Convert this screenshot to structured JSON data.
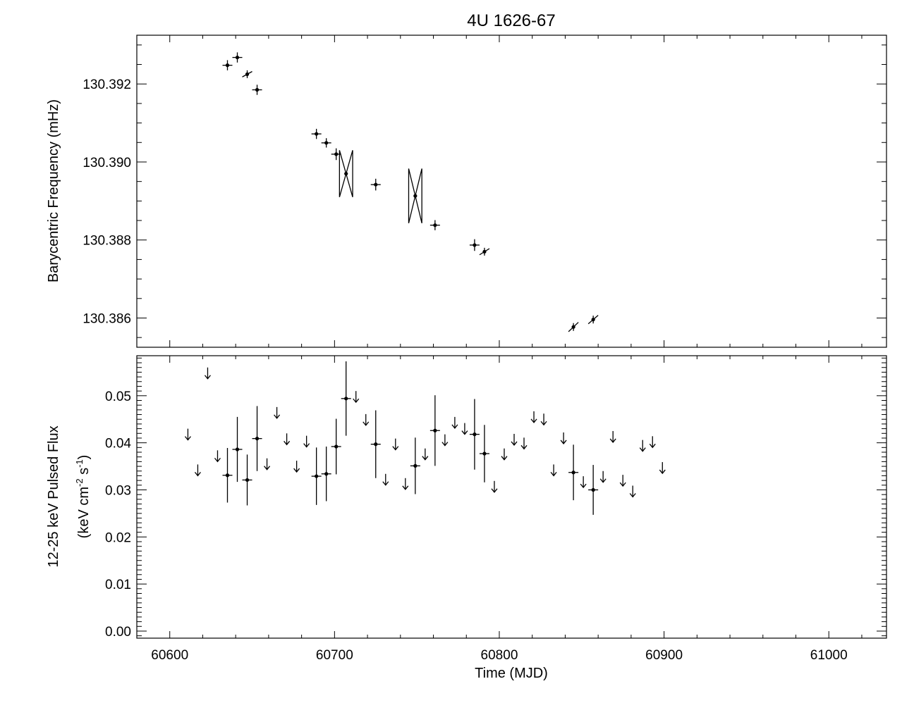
{
  "chart_data": [
    {
      "type": "scatter",
      "title": "4U 1626-67",
      "ylabel": "Barycentric Frequency (mHz)",
      "xlim": [
        60580,
        61035
      ],
      "ylim": [
        130.38525,
        130.39325
      ],
      "yticks": [
        130.386,
        130.388,
        130.39,
        130.392
      ],
      "ytick_labels": [
        "130.386",
        "130.388",
        "130.390",
        "130.392"
      ],
      "series": [
        {
          "points": [
            {
              "x": 60635,
              "y": 130.39248,
              "xerr": 3,
              "yerr": 0.00013,
              "slope": 0
            },
            {
              "x": 60641,
              "y": 130.39268,
              "xerr": 3,
              "yerr": 0.00013,
              "slope": 0
            },
            {
              "x": 60647,
              "y": 130.39225,
              "xerr": 3,
              "yerr": 0.0001,
              "slope": -7e-05
            },
            {
              "x": 60653,
              "y": 130.39185,
              "xerr": 3,
              "yerr": 0.00013,
              "slope": 0
            },
            {
              "x": 60689,
              "y": 130.39072,
              "xerr": 3,
              "yerr": 0.00013,
              "slope": 0
            },
            {
              "x": 60695,
              "y": 130.39049,
              "xerr": 3,
              "yerr": 0.00012,
              "slope": 0
            },
            {
              "x": 60701,
              "y": 130.3902,
              "xerr": 3,
              "yerr": 0.00015,
              "slope": 0
            },
            {
              "x": 60707,
              "y": 130.3897,
              "xerr": 4,
              "yerr": 0.0006,
              "slope": 0
            },
            {
              "x": 60725,
              "y": 130.38942,
              "xerr": 3,
              "yerr": 0.00015,
              "slope": 0
            },
            {
              "x": 60749,
              "y": 130.38913,
              "xerr": 4,
              "yerr": 0.0007,
              "slope": 0
            },
            {
              "x": 60761,
              "y": 130.38838,
              "xerr": 3,
              "yerr": 0.00013,
              "slope": 0
            },
            {
              "x": 60785,
              "y": 130.38787,
              "xerr": 3,
              "yerr": 0.00015,
              "slope": 0
            },
            {
              "x": 60791,
              "y": 130.3877,
              "xerr": 3,
              "yerr": 0.0001,
              "slope": -8e-05
            },
            {
              "x": 60845,
              "y": 130.38577,
              "xerr": 3,
              "yerr": 0.0001,
              "slope": -0.00012
            },
            {
              "x": 60857,
              "y": 130.38596,
              "xerr": 3,
              "yerr": 0.0001,
              "slope": -0.00011
            }
          ]
        }
      ],
      "grid": false
    },
    {
      "type": "scatter",
      "xlabel": "Time (MJD)",
      "ylabel_line1": "12-25 keV Pulsed Flux",
      "ylabel_line2_pre": "(keV cm",
      "ylabel_sup1": "-2",
      "ylabel_line2_mid": " s",
      "ylabel_sup2": "-1",
      "ylabel_line2_post": ")",
      "xlim": [
        60580,
        61035
      ],
      "ylim": [
        -0.0015,
        0.0585
      ],
      "xticks": [
        60600,
        60700,
        60800,
        60900,
        61000
      ],
      "xtick_labels": [
        "60600",
        "60700",
        "60800",
        "60900",
        "61000"
      ],
      "yticks": [
        0.0,
        0.01,
        0.02,
        0.03,
        0.04,
        0.05
      ],
      "ytick_labels": [
        "0.00",
        "0.01",
        "0.02",
        "0.03",
        "0.04",
        "0.05"
      ],
      "detections": [
        {
          "x": 60635,
          "y": 0.0331,
          "xerr": 3,
          "yerr": 0.0058
        },
        {
          "x": 60641,
          "y": 0.0386,
          "xerr": 3,
          "yerr": 0.0069
        },
        {
          "x": 60647,
          "y": 0.0321,
          "xerr": 3,
          "yerr": 0.0054
        },
        {
          "x": 60653,
          "y": 0.0409,
          "xerr": 3,
          "yerr": 0.0069
        },
        {
          "x": 60689,
          "y": 0.0329,
          "xerr": 3,
          "yerr": 0.0061
        },
        {
          "x": 60695,
          "y": 0.0334,
          "xerr": 3,
          "yerr": 0.0058
        },
        {
          "x": 60701,
          "y": 0.0392,
          "xerr": 3,
          "yerr": 0.0059
        },
        {
          "x": 60707,
          "y": 0.0494,
          "xerr": 3,
          "yerr": 0.0079
        },
        {
          "x": 60725,
          "y": 0.0397,
          "xerr": 3,
          "yerr": 0.0072
        },
        {
          "x": 60749,
          "y": 0.0351,
          "xerr": 3,
          "yerr": 0.006
        },
        {
          "x": 60761,
          "y": 0.0426,
          "xerr": 3,
          "yerr": 0.0075
        },
        {
          "x": 60785,
          "y": 0.0418,
          "xerr": 3,
          "yerr": 0.0075
        },
        {
          "x": 60791,
          "y": 0.0377,
          "xerr": 3,
          "yerr": 0.0061
        },
        {
          "x": 60845,
          "y": 0.0337,
          "xerr": 3,
          "yerr": 0.0059
        },
        {
          "x": 60857,
          "y": 0.03,
          "xerr": 3,
          "yerr": 0.0053
        }
      ],
      "upper_limits": [
        {
          "x": 60611,
          "y": 0.0418
        },
        {
          "x": 60617,
          "y": 0.0342
        },
        {
          "x": 60623,
          "y": 0.0548
        },
        {
          "x": 60629,
          "y": 0.0372
        },
        {
          "x": 60659,
          "y": 0.0355
        },
        {
          "x": 60665,
          "y": 0.0464
        },
        {
          "x": 60671,
          "y": 0.0408
        },
        {
          "x": 60677,
          "y": 0.035
        },
        {
          "x": 60683,
          "y": 0.0403
        },
        {
          "x": 60713,
          "y": 0.0498
        },
        {
          "x": 60719,
          "y": 0.0449
        },
        {
          "x": 60731,
          "y": 0.0322
        },
        {
          "x": 60737,
          "y": 0.0397
        },
        {
          "x": 60743,
          "y": 0.0313
        },
        {
          "x": 60755,
          "y": 0.0376
        },
        {
          "x": 60767,
          "y": 0.0406
        },
        {
          "x": 60773,
          "y": 0.0443
        },
        {
          "x": 60779,
          "y": 0.043
        },
        {
          "x": 60797,
          "y": 0.0307
        },
        {
          "x": 60803,
          "y": 0.0376
        },
        {
          "x": 60809,
          "y": 0.0407
        },
        {
          "x": 60815,
          "y": 0.0399
        },
        {
          "x": 60821,
          "y": 0.0455
        },
        {
          "x": 60827,
          "y": 0.045
        },
        {
          "x": 60833,
          "y": 0.0342
        },
        {
          "x": 60839,
          "y": 0.041
        },
        {
          "x": 60851,
          "y": 0.0317
        },
        {
          "x": 60863,
          "y": 0.0328
        },
        {
          "x": 60869,
          "y": 0.0413
        },
        {
          "x": 60875,
          "y": 0.032
        },
        {
          "x": 60881,
          "y": 0.0297
        },
        {
          "x": 60887,
          "y": 0.0394
        },
        {
          "x": 60893,
          "y": 0.0402
        },
        {
          "x": 60899,
          "y": 0.0347
        }
      ],
      "grid": false
    }
  ]
}
